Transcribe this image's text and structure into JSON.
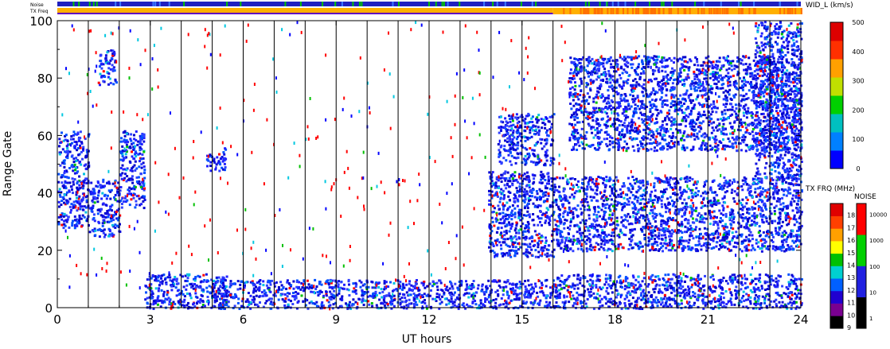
{
  "chart_data": {
    "type": "heatmap",
    "xlabel": "UT hours",
    "ylabel": "Range Gate",
    "xlim": [
      0,
      24
    ],
    "ylim": [
      0,
      100
    ],
    "x_ticks": [
      "0",
      "3",
      "6",
      "9",
      "12",
      "15",
      "18",
      "21",
      "24"
    ],
    "y_ticks": [
      "0",
      "20",
      "40",
      "60",
      "80",
      "100"
    ],
    "hour_lines": [
      1,
      2,
      3,
      4,
      5,
      6,
      7,
      8,
      9,
      10,
      11,
      12,
      13,
      14,
      15,
      16,
      17,
      18,
      19,
      20,
      21,
      22,
      23
    ],
    "top_bars": {
      "noise_label": "Noise",
      "txfreq_label": "TX Freq",
      "txfreq_switch_hour": 16
    },
    "colorbar_width": {
      "title": "WID_L (km/s)",
      "ticks": [
        "0",
        "100",
        "200",
        "300",
        "400",
        "500"
      ],
      "stops": [
        "#0000ff",
        "#0080ff",
        "#00c0c0",
        "#00d000",
        "#c0e000",
        "#ffa000",
        "#ff3000",
        "#dd0000"
      ]
    },
    "colorbar_txfreq": {
      "title": "TX FRQ (MHz)",
      "ticks": [
        "9",
        "10",
        "11",
        "12",
        "13",
        "14",
        "15",
        "16",
        "17",
        "18"
      ],
      "colors": [
        "#000000",
        "#7a0090",
        "#2000d0",
        "#0060ff",
        "#00d0d0",
        "#00c000",
        "#ffff00",
        "#ffa000",
        "#ff4000",
        "#e00000"
      ]
    },
    "colorbar_noise": {
      "title": "NOISE",
      "ticks": [
        "1",
        "10",
        "100",
        "1000",
        "10000"
      ],
      "colors": [
        "#000000",
        "#2020e0",
        "#00d000",
        "#ff0000"
      ]
    },
    "echo_regions": [
      {
        "x0": 0.0,
        "x1": 1.0,
        "y0": 28,
        "y1": 62
      },
      {
        "x0": 1.0,
        "x1": 2.0,
        "y0": 25,
        "y1": 45
      },
      {
        "x0": 1.3,
        "x1": 1.9,
        "y0": 78,
        "y1": 90
      },
      {
        "x0": 2.0,
        "x1": 2.8,
        "y0": 35,
        "y1": 62
      },
      {
        "x0": 2.8,
        "x1": 5.5,
        "y0": 0,
        "y1": 12
      },
      {
        "x0": 4.8,
        "x1": 5.4,
        "y0": 48,
        "y1": 56
      },
      {
        "x0": 5.0,
        "x1": 16.0,
        "y0": 0,
        "y1": 10
      },
      {
        "x0": 13.9,
        "x1": 16.0,
        "y0": 18,
        "y1": 48
      },
      {
        "x0": 14.2,
        "x1": 16.0,
        "y0": 50,
        "y1": 68
      },
      {
        "x0": 16.0,
        "x1": 24.0,
        "y0": 20,
        "y1": 46
      },
      {
        "x0": 16.0,
        "x1": 24.0,
        "y0": 0,
        "y1": 12
      },
      {
        "x0": 16.5,
        "x1": 24.0,
        "y0": 55,
        "y1": 88
      },
      {
        "x0": 22.5,
        "x1": 24.0,
        "y0": 45,
        "y1": 100
      }
    ]
  }
}
